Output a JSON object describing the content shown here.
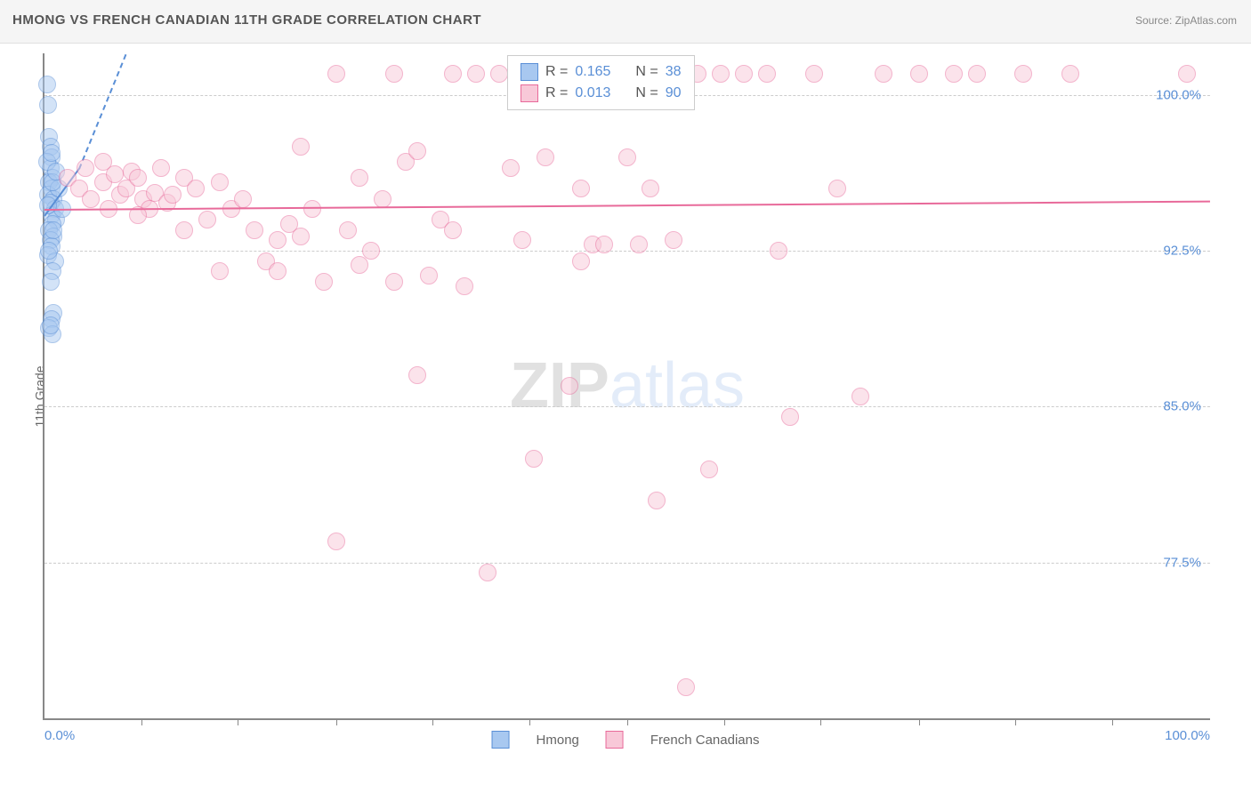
{
  "title": "HMONG VS FRENCH CANADIAN 11TH GRADE CORRELATION CHART",
  "source": "Source: ZipAtlas.com",
  "watermark_zip": "ZIP",
  "watermark_atlas": "atlas",
  "y_axis_title": "11th Grade",
  "chart": {
    "type": "scatter",
    "xlim": [
      0,
      100
    ],
    "ylim": [
      70,
      102
    ],
    "x_ticks": [
      0,
      100
    ],
    "x_tick_labels": [
      "0.0%",
      "100.0%"
    ],
    "x_minor_ticks": [
      8.3,
      16.6,
      25,
      33.3,
      41.6,
      50,
      58.3,
      66.6,
      75,
      83.3,
      91.6
    ],
    "y_ticks": [
      77.5,
      85.0,
      92.5,
      100.0
    ],
    "y_tick_labels": [
      "77.5%",
      "85.0%",
      "92.5%",
      "100.0%"
    ],
    "background_color": "#ffffff",
    "grid_color": "#cccccc",
    "axis_color": "#888888",
    "label_color": "#5a8fd6",
    "point_radius": 9,
    "point_opacity": 0.5,
    "series": [
      {
        "name": "Hmong",
        "fill_color": "#a8c8f0",
        "stroke_color": "#5a8fd6",
        "r_value": "0.165",
        "n_value": "38",
        "trend": {
          "x1": 0,
          "y1": 94.2,
          "x2": 3,
          "y2": 96.5,
          "dash_extend_x": 7,
          "dash_extend_y": 102
        },
        "points": [
          [
            0.2,
            100.5
          ],
          [
            0.3,
            99.5
          ],
          [
            0.4,
            98.0
          ],
          [
            0.5,
            97.5
          ],
          [
            0.6,
            97.0
          ],
          [
            0.5,
            96.5
          ],
          [
            0.7,
            96.0
          ],
          [
            0.4,
            95.8
          ],
          [
            0.6,
            95.5
          ],
          [
            0.3,
            95.2
          ],
          [
            0.8,
            95.0
          ],
          [
            0.5,
            94.8
          ],
          [
            0.9,
            94.5
          ],
          [
            0.6,
            94.2
          ],
          [
            1.0,
            94.0
          ],
          [
            0.7,
            93.8
          ],
          [
            0.4,
            93.5
          ],
          [
            0.8,
            93.2
          ],
          [
            0.5,
            93.0
          ],
          [
            0.6,
            92.7
          ],
          [
            0.3,
            92.3
          ],
          [
            0.9,
            92.0
          ],
          [
            0.7,
            91.5
          ],
          [
            0.5,
            91.0
          ],
          [
            0.8,
            89.5
          ],
          [
            0.6,
            89.2
          ],
          [
            0.4,
            88.8
          ],
          [
            0.7,
            88.5
          ],
          [
            1.2,
            95.5
          ],
          [
            1.5,
            94.5
          ],
          [
            0.2,
            96.8
          ],
          [
            0.3,
            94.7
          ],
          [
            0.4,
            92.5
          ],
          [
            0.5,
            88.9
          ],
          [
            0.6,
            97.2
          ],
          [
            0.7,
            95.8
          ],
          [
            0.8,
            93.5
          ],
          [
            1.0,
            96.3
          ]
        ]
      },
      {
        "name": "French Canadians",
        "fill_color": "#f8c8d8",
        "stroke_color": "#e86a9a",
        "r_value": "0.013",
        "n_value": "90",
        "trend": {
          "x1": 0,
          "y1": 94.5,
          "x2": 100,
          "y2": 94.9
        },
        "points": [
          [
            2,
            96.0
          ],
          [
            3,
            95.5
          ],
          [
            3.5,
            96.5
          ],
          [
            4,
            95.0
          ],
          [
            5,
            95.8
          ],
          [
            5.5,
            94.5
          ],
          [
            6,
            96.2
          ],
          [
            6.5,
            95.2
          ],
          [
            7,
            95.5
          ],
          [
            7.5,
            96.3
          ],
          [
            8,
            96.0
          ],
          [
            8.5,
            95.0
          ],
          [
            9,
            94.5
          ],
          [
            9.5,
            95.3
          ],
          [
            10,
            96.5
          ],
          [
            10.5,
            94.8
          ],
          [
            11,
            95.2
          ],
          [
            12,
            96.0
          ],
          [
            13,
            95.5
          ],
          [
            14,
            94.0
          ],
          [
            15,
            95.8
          ],
          [
            16,
            94.5
          ],
          [
            17,
            95.0
          ],
          [
            18,
            93.5
          ],
          [
            19,
            92.0
          ],
          [
            20,
            91.5
          ],
          [
            21,
            93.8
          ],
          [
            22,
            97.5
          ],
          [
            23,
            94.5
          ],
          [
            24,
            91.0
          ],
          [
            25,
            101.0
          ],
          [
            26,
            93.5
          ],
          [
            27,
            91.8
          ],
          [
            28,
            92.5
          ],
          [
            29,
            95.0
          ],
          [
            30,
            101.0
          ],
          [
            31,
            96.8
          ],
          [
            32,
            97.3
          ],
          [
            33,
            91.3
          ],
          [
            34,
            94.0
          ],
          [
            35,
            101.0
          ],
          [
            36,
            90.8
          ],
          [
            37,
            101.0
          ],
          [
            38,
            77.0
          ],
          [
            39,
            101.0
          ],
          [
            40,
            96.5
          ],
          [
            41,
            93.0
          ],
          [
            42,
            82.5
          ],
          [
            43,
            97.0
          ],
          [
            44,
            101.0
          ],
          [
            45,
            86.0
          ],
          [
            46,
            95.5
          ],
          [
            47,
            92.8
          ],
          [
            48,
            92.8
          ],
          [
            50,
            97.0
          ],
          [
            52,
            95.5
          ],
          [
            52.5,
            80.5
          ],
          [
            54,
            93.0
          ],
          [
            55,
            71.5
          ],
          [
            56,
            101.0
          ],
          [
            57,
            82.0
          ],
          [
            58,
            101.0
          ],
          [
            60,
            101.0
          ],
          [
            62,
            101.0
          ],
          [
            63,
            92.5
          ],
          [
            64,
            84.5
          ],
          [
            66,
            101.0
          ],
          [
            68,
            95.5
          ],
          [
            70,
            85.5
          ],
          [
            72,
            101.0
          ],
          [
            75,
            101.0
          ],
          [
            78,
            101.0
          ],
          [
            80,
            101.0
          ],
          [
            84,
            101.0
          ],
          [
            88,
            101.0
          ],
          [
            98,
            101.0
          ],
          [
            25,
            78.5
          ],
          [
            32,
            86.5
          ],
          [
            20,
            93.0
          ],
          [
            12,
            93.5
          ],
          [
            15,
            91.5
          ],
          [
            8,
            94.2
          ],
          [
            22,
            93.2
          ],
          [
            27,
            96.0
          ],
          [
            35,
            93.5
          ],
          [
            30,
            91.0
          ],
          [
            5,
            96.8
          ],
          [
            43,
            101.0
          ],
          [
            51,
            92.8
          ],
          [
            46,
            92.0
          ]
        ]
      }
    ],
    "legend_stats": {
      "r_label": "R =",
      "n_label": "N ="
    },
    "bottom_legend_labels": [
      "Hmong",
      "French Canadians"
    ]
  }
}
